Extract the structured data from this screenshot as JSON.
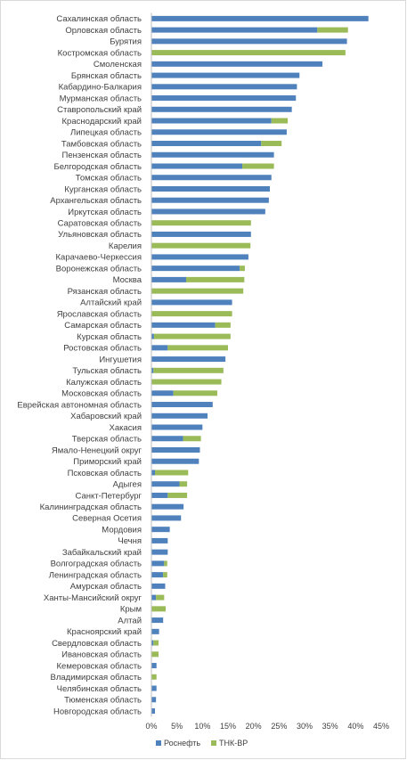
{
  "chart_data": {
    "type": "bar",
    "orientation": "horizontal",
    "stacked": true,
    "xlim": [
      0,
      45
    ],
    "x_ticks": [
      "0%",
      "5%",
      "10%",
      "15%",
      "20%",
      "25%",
      "30%",
      "35%",
      "40%",
      "45%"
    ],
    "x_tick_values": [
      0,
      5,
      10,
      15,
      20,
      25,
      30,
      35,
      40,
      45
    ],
    "grid": false,
    "legend_position": "bottom",
    "colors": {
      "rosneft": "#4f81bd",
      "tnk": "#9bbb59"
    },
    "categories": [
      "Сахалинская область",
      "Орловская область",
      "Бурятия",
      "Костромская область",
      "Смоленская",
      "Брянская область",
      "Кабардино-Балкария",
      "Мурманская область",
      "Ставропольский край",
      "Краснодарский край",
      "Липецкая область",
      "Тамбовская область",
      "Пензенская область",
      "Белгородская область",
      "Томская область",
      "Курганская область",
      "Архангельская область",
      "Иркутская область",
      "Саратовская область",
      "Ульяновская область",
      "Карелия",
      "Карачаево-Черкессия",
      "Воронежская область",
      "Москва",
      "Рязанская область",
      "Алтайский край",
      "Ярославская область",
      "Самарская область",
      "Курская область",
      "Ростовская область",
      "Ингушетия",
      "Тульская область",
      "Калужская область",
      "Московская область",
      "Еврейская автономная область",
      "Хабаровский край",
      "Хакасия",
      "Тверская область",
      "Ямало-Ненецкий округ",
      "Приморский край",
      "Псковская область",
      "Адыгея",
      "Санкт-Петербург",
      "Калининградская область",
      "Северная Осетия",
      "Мордовия",
      "Чечня",
      "Забайкальский край",
      "Волгоградская область",
      "Ленинградская область",
      "Амурская область",
      "Ханты-Мансийский округ",
      "Крым",
      "Алтай",
      "Красноярский край",
      "Свердловская область",
      "Ивановская область",
      "Кемеровская область",
      "Владимирская область",
      "Челябинская область",
      "Тюменская область",
      "Новгородская область"
    ],
    "series": [
      {
        "name": "Роснефть",
        "values": [
          42.5,
          32.5,
          38.3,
          0,
          33.5,
          29.0,
          28.5,
          28.3,
          27.5,
          23.5,
          26.5,
          21.5,
          24.0,
          17.8,
          23.5,
          23.2,
          23.0,
          22.3,
          0,
          19.5,
          0,
          19.0,
          17.3,
          6.8,
          0,
          15.8,
          0,
          12.5,
          0.5,
          3.2,
          14.5,
          0.4,
          0,
          4.3,
          12.0,
          11.0,
          10.0,
          6.2,
          9.5,
          9.3,
          0.7,
          5.5,
          3.2,
          6.3,
          5.8,
          3.6,
          3.2,
          3.2,
          2.5,
          2.3,
          2.7,
          0.9,
          0,
          2.3,
          1.5,
          0.4,
          0,
          1.0,
          0,
          1.0,
          0.9,
          0.7
        ]
      },
      {
        "name": "ТНК-BP",
        "values": [
          0,
          6.0,
          0,
          38.0,
          0,
          0,
          0,
          0,
          0,
          3.2,
          0,
          4.0,
          0,
          6.2,
          0,
          0,
          0,
          0,
          19.5,
          0,
          19.4,
          0,
          1.0,
          11.4,
          18.0,
          0,
          15.8,
          3.0,
          15.0,
          11.8,
          0,
          13.7,
          13.7,
          8.6,
          0,
          0,
          0,
          3.5,
          0,
          0,
          6.5,
          1.5,
          3.8,
          0,
          0,
          0,
          0,
          0,
          0.6,
          0.8,
          0,
          1.6,
          2.8,
          0,
          0,
          1.0,
          1.4,
          0,
          1.0,
          0,
          0,
          0
        ]
      }
    ]
  }
}
